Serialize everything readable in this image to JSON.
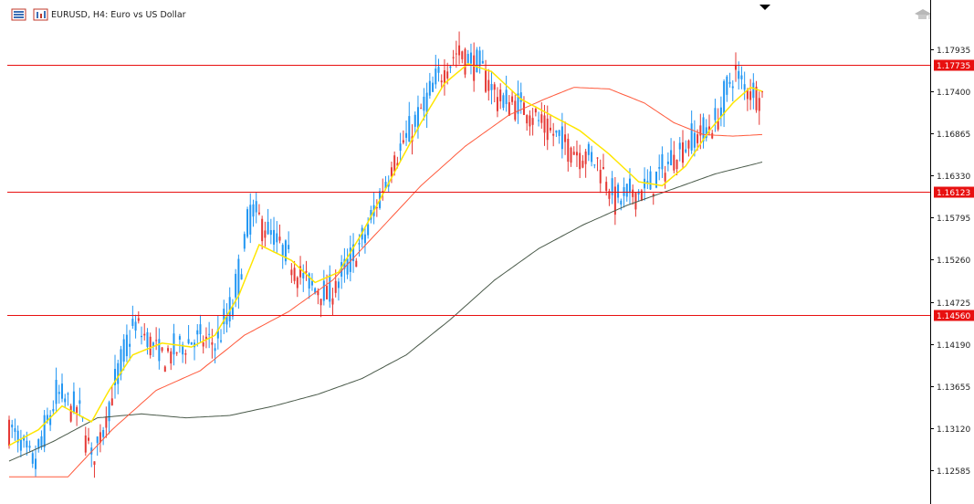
{
  "header": {
    "title": "EURUSD, H4:  Euro vs US Dollar",
    "list_icon": "list-icon",
    "chart_icon": "chart-icon",
    "cap_icon": "graduation-cap-icon"
  },
  "colors": {
    "bull": "#2196f3",
    "bear": "#e53935",
    "ma_fast": "#ffe600",
    "ma_mid": "#ff5a3c",
    "ma_slow": "#4a5a4a",
    "hline": "#e81010",
    "axis": "#000000",
    "tag_bg": "#e81010"
  },
  "chart_data": {
    "type": "candlestick",
    "symbol": "EURUSD",
    "timeframe": "H4",
    "ylim": [
      1.12155,
      1.1856
    ],
    "y_ticks": [
      "1.17935",
      "1.17400",
      "1.16865",
      "1.16330",
      "1.15795",
      "1.15260",
      "1.14725",
      "1.14190",
      "1.13655",
      "1.13120",
      "1.12585"
    ],
    "horizontal_lines": [
      {
        "label": "1.17735",
        "value": 1.17735
      },
      {
        "label": "1.16123",
        "value": 1.16123
      },
      {
        "label": "1.14560",
        "value": 1.1456
      }
    ],
    "anchors": [
      [
        0,
        1.1312
      ],
      [
        8,
        1.1265
      ],
      [
        16,
        1.1355
      ],
      [
        24,
        1.133
      ],
      [
        28,
        1.127
      ],
      [
        34,
        1.1345
      ],
      [
        42,
        1.1445
      ],
      [
        52,
        1.14
      ],
      [
        62,
        1.1425
      ],
      [
        70,
        1.142
      ],
      [
        76,
        1.147
      ],
      [
        82,
        1.159
      ],
      [
        92,
        1.154
      ],
      [
        100,
        1.15
      ],
      [
        108,
        1.148
      ],
      [
        112,
        1.15
      ],
      [
        120,
        1.155
      ],
      [
        130,
        1.165
      ],
      [
        138,
        1.17
      ],
      [
        146,
        1.176
      ],
      [
        152,
        1.179
      ],
      [
        160,
        1.177
      ],
      [
        166,
        1.173
      ],
      [
        175,
        1.172
      ],
      [
        183,
        1.169
      ],
      [
        192,
        1.1665
      ],
      [
        200,
        1.165
      ],
      [
        206,
        1.16
      ],
      [
        212,
        1.161
      ],
      [
        218,
        1.162
      ],
      [
        226,
        1.166
      ],
      [
        232,
        1.168
      ],
      [
        240,
        1.17
      ],
      [
        246,
        1.1765
      ],
      [
        250,
        1.1745
      ],
      [
        256,
        1.1735
      ]
    ],
    "ma_fast": [
      [
        0,
        1.129
      ],
      [
        10,
        1.131
      ],
      [
        18,
        1.134
      ],
      [
        28,
        1.132
      ],
      [
        34,
        1.136
      ],
      [
        42,
        1.1405
      ],
      [
        52,
        1.142
      ],
      [
        62,
        1.1415
      ],
      [
        70,
        1.143
      ],
      [
        78,
        1.148
      ],
      [
        85,
        1.1545
      ],
      [
        96,
        1.1525
      ],
      [
        104,
        1.1497
      ],
      [
        112,
        1.151
      ],
      [
        120,
        1.156
      ],
      [
        130,
        1.163
      ],
      [
        140,
        1.17
      ],
      [
        148,
        1.175
      ],
      [
        156,
        1.1775
      ],
      [
        164,
        1.1765
      ],
      [
        174,
        1.173
      ],
      [
        184,
        1.171
      ],
      [
        194,
        1.169
      ],
      [
        204,
        1.166
      ],
      [
        214,
        1.1625
      ],
      [
        222,
        1.162
      ],
      [
        230,
        1.1645
      ],
      [
        238,
        1.169
      ],
      [
        246,
        1.1725
      ],
      [
        252,
        1.1745
      ],
      [
        256,
        1.174
      ]
    ],
    "ma_mid": [
      [
        0,
        1.125
      ],
      [
        20,
        1.125
      ],
      [
        35,
        1.131
      ],
      [
        50,
        1.136
      ],
      [
        65,
        1.1385
      ],
      [
        80,
        1.143
      ],
      [
        95,
        1.146
      ],
      [
        110,
        1.15
      ],
      [
        125,
        1.156
      ],
      [
        140,
        1.162
      ],
      [
        155,
        1.167
      ],
      [
        170,
        1.171
      ],
      [
        182,
        1.173
      ],
      [
        192,
        1.1745
      ],
      [
        204,
        1.1743
      ],
      [
        216,
        1.1725
      ],
      [
        226,
        1.17
      ],
      [
        236,
        1.1685
      ],
      [
        246,
        1.1683
      ],
      [
        256,
        1.1685
      ]
    ],
    "ma_slow": [
      [
        0,
        1.127
      ],
      [
        15,
        1.1295
      ],
      [
        30,
        1.1325
      ],
      [
        45,
        1.133
      ],
      [
        60,
        1.1325
      ],
      [
        75,
        1.1328
      ],
      [
        90,
        1.134
      ],
      [
        105,
        1.1355
      ],
      [
        120,
        1.1375
      ],
      [
        135,
        1.1405
      ],
      [
        150,
        1.145
      ],
      [
        165,
        1.15
      ],
      [
        180,
        1.154
      ],
      [
        195,
        1.157
      ],
      [
        210,
        1.1595
      ],
      [
        225,
        1.1615
      ],
      [
        240,
        1.1635
      ],
      [
        256,
        1.165
      ]
    ],
    "candle_count": 257
  }
}
